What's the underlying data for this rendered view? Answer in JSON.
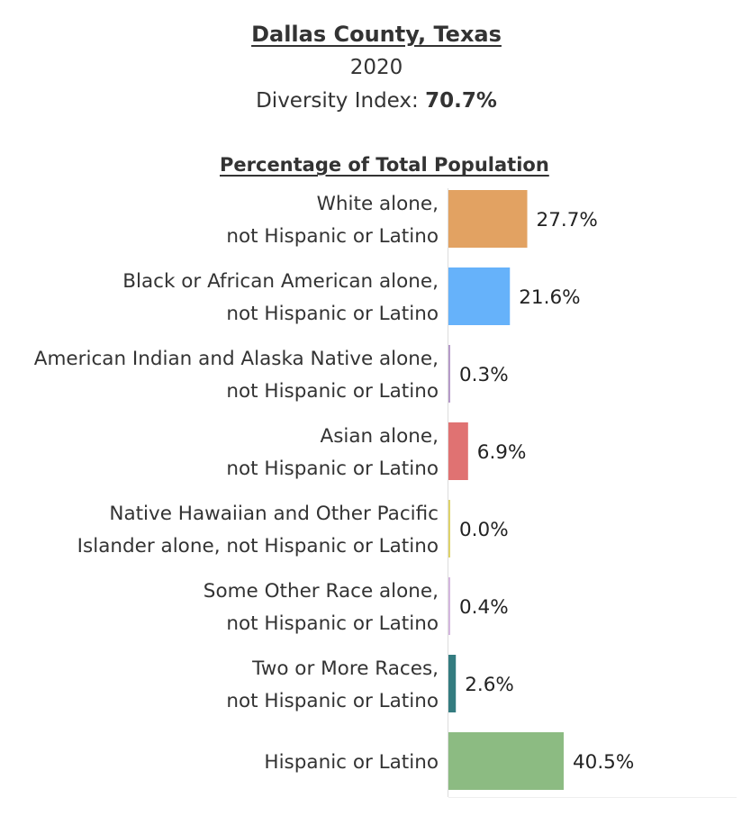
{
  "header": {
    "title": "Dallas County, Texas",
    "year": "2020",
    "diversity_label": "Diversity Index:",
    "diversity_value": "70.7%"
  },
  "chart_data": {
    "type": "bar",
    "orientation": "horizontal",
    "title": "Percentage of Total Population",
    "categories": [
      [
        "White alone,",
        "not Hispanic or Latino"
      ],
      [
        "Black or African American alone,",
        "not Hispanic or Latino"
      ],
      [
        "American Indian and Alaska Native alone,",
        "not Hispanic or Latino"
      ],
      [
        "Asian alone,",
        "not Hispanic or Latino"
      ],
      [
        "Native Hawaiian and Other Pacific",
        "Islander alone, not Hispanic or Latino"
      ],
      [
        "Some Other Race alone,",
        "not Hispanic or Latino"
      ],
      [
        "Two or More Races,",
        "not Hispanic or Latino"
      ],
      [
        "Hispanic or Latino"
      ]
    ],
    "values": [
      27.7,
      21.6,
      0.3,
      6.9,
      0.0,
      0.4,
      2.6,
      40.5
    ],
    "value_labels": [
      "27.7%",
      "21.6%",
      "0.3%",
      "6.9%",
      "0.0%",
      "0.4%",
      "2.6%",
      "40.5%"
    ],
    "colors": [
      "#e2a262",
      "#66b2fa",
      "#b69bc9",
      "#e07272",
      "#dfd36a",
      "#d4b7df",
      "#347c80",
      "#8cbb82"
    ],
    "xlim": [
      0,
      100
    ],
    "grid": false,
    "legend": "none"
  }
}
